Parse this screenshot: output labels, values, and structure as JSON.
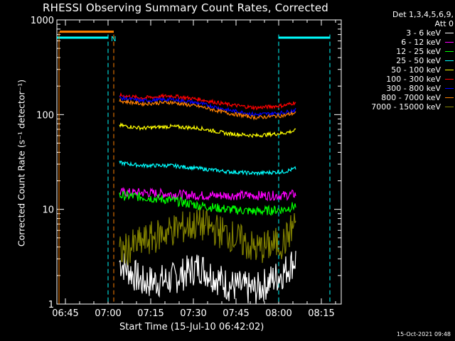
{
  "title": "RHESSI Observing Summary Count Rates, Corrected",
  "xlabel": "Start Time (15-Jul-10 06:42:02)",
  "ylabel": "Corrected Count Rate (s⁻¹ detector⁻¹)",
  "timestamp": "15-Oct-2021 09:48",
  "legend_header": [
    "Det 1,3,4,5,6,9,",
    "Att 0"
  ],
  "flag_label": "N",
  "chart_data": {
    "type": "line",
    "title": "RHESSI Observing Summary Count Rates, Corrected",
    "xlabel": "Start Time (15-Jul-10 06:42:02)",
    "ylabel": "Corrected Count Rate (s^-1 detector^-1)",
    "x_unit": "minutes after 06:42:02",
    "xlim": [
      0,
      100
    ],
    "ylim": [
      1,
      1000
    ],
    "yscale": "log",
    "x_ticks": [
      {
        "label": "06:45",
        "value": 3
      },
      {
        "label": "07:00",
        "value": 18
      },
      {
        "label": "07:15",
        "value": 33
      },
      {
        "label": "07:30",
        "value": 48
      },
      {
        "label": "07:45",
        "value": 63
      },
      {
        "label": "08:00",
        "value": 78
      },
      {
        "label": "08:15",
        "value": 93
      }
    ],
    "y_ticks": [
      {
        "label": "1",
        "value": 1
      },
      {
        "label": "10",
        "value": 10
      },
      {
        "label": "100",
        "value": 100
      },
      {
        "label": "1000",
        "value": 1000
      }
    ],
    "legend_position": "top-right",
    "grid": false,
    "series": [
      {
        "name": "3 - 6 keV",
        "color": "#ffffff",
        "x": [
          22,
          30,
          40,
          50,
          60,
          70,
          80,
          84
        ],
        "y": [
          2.8,
          1.7,
          1.8,
          2.5,
          1.6,
          1.4,
          2.2,
          3.0
        ]
      },
      {
        "name": "6 - 12 keV",
        "color": "#ff00ff",
        "x": [
          22,
          30,
          40,
          50,
          60,
          70,
          80,
          84
        ],
        "y": [
          15,
          15,
          14.5,
          14,
          14,
          14,
          14,
          14.5
        ]
      },
      {
        "name": "12 - 25 keV",
        "color": "#00ff00",
        "x": [
          22,
          30,
          40,
          50,
          60,
          70,
          80,
          84
        ],
        "y": [
          14,
          13.5,
          12.5,
          11,
          10,
          9.5,
          10,
          11
        ]
      },
      {
        "name": "25 - 50 keV",
        "color": "#00ffff",
        "x": [
          22,
          30,
          40,
          50,
          60,
          70,
          80,
          84
        ],
        "y": [
          31,
          29,
          29,
          27,
          25,
          24,
          25,
          27
        ]
      },
      {
        "name": "50 - 100 keV",
        "color": "#ffff00",
        "x": [
          22,
          30,
          40,
          50,
          60,
          70,
          80,
          84
        ],
        "y": [
          77,
          72,
          75,
          72,
          63,
          60,
          64,
          68
        ]
      },
      {
        "name": "100 - 300 keV",
        "color": "#ff0000",
        "x": [
          22,
          30,
          40,
          50,
          60,
          70,
          80,
          84
        ],
        "y": [
          160,
          150,
          158,
          145,
          128,
          118,
          125,
          135
        ]
      },
      {
        "name": "300 - 800 keV",
        "color": "#0000ff",
        "x": [
          22,
          30,
          40,
          50,
          60,
          70,
          80,
          84
        ],
        "y": [
          150,
          140,
          145,
          132,
          112,
          100,
          105,
          112
        ]
      },
      {
        "name": "800 - 7000 keV",
        "color": "#ff8000",
        "x": [
          22,
          30,
          40,
          50,
          60,
          70,
          80,
          84
        ],
        "y": [
          140,
          130,
          135,
          122,
          104,
          93,
          98,
          105
        ]
      },
      {
        "name": "7000 - 15000 keV",
        "color": "#808000",
        "x": [
          22,
          30,
          40,
          50,
          60,
          70,
          80,
          84
        ],
        "y": [
          3.5,
          4.5,
          6.0,
          7.0,
          5.5,
          3.8,
          4.5,
          7.5
        ]
      }
    ]
  }
}
